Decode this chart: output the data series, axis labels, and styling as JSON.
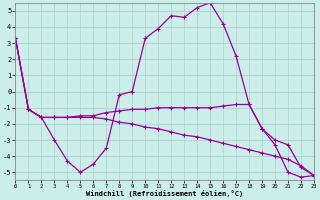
{
  "xlabel": "Windchill (Refroidissement éolien,°C)",
  "background_color": "#cceee8",
  "grid_color": "#aacccc",
  "line_color": "#990099",
  "xlim": [
    0,
    23
  ],
  "ylim": [
    -5.5,
    5.5
  ],
  "yticks": [
    -5,
    -4,
    -3,
    -2,
    -1,
    0,
    1,
    2,
    3,
    4,
    5
  ],
  "xticks": [
    0,
    1,
    2,
    3,
    4,
    5,
    6,
    7,
    8,
    9,
    10,
    11,
    12,
    13,
    14,
    15,
    16,
    17,
    18,
    19,
    20,
    21,
    22,
    23
  ],
  "line1_x": [
    0,
    1,
    2,
    3,
    4,
    5,
    6,
    7,
    8,
    9,
    10,
    11,
    12,
    13,
    14,
    15,
    16,
    17,
    18,
    19,
    20,
    21,
    22,
    23
  ],
  "line1_y": [
    3.3,
    -1.1,
    -1.6,
    -3.0,
    -4.3,
    -5.0,
    -4.5,
    -3.5,
    -0.2,
    0.0,
    3.3,
    3.9,
    4.7,
    4.6,
    5.2,
    5.5,
    4.2,
    2.2,
    -0.8,
    -2.3,
    -3.0,
    -3.3,
    -4.7,
    -5.2
  ],
  "line2_x": [
    0,
    1,
    2,
    3,
    4,
    5,
    6,
    7,
    8,
    9,
    10,
    11,
    12,
    13,
    14,
    15,
    16,
    17,
    18,
    19,
    20,
    21,
    22,
    23
  ],
  "line2_y": [
    3.3,
    -1.1,
    -1.6,
    -1.6,
    -1.6,
    -1.5,
    -1.5,
    -1.3,
    -1.2,
    -1.1,
    -1.1,
    -1.0,
    -1.0,
    -1.0,
    -1.0,
    -1.0,
    -0.9,
    -0.8,
    -0.8,
    -2.3,
    -3.3,
    -5.0,
    -5.3,
    -5.2
  ],
  "line3_x": [
    0,
    1,
    2,
    3,
    4,
    5,
    6,
    7,
    8,
    9,
    10,
    11,
    12,
    13,
    14,
    15,
    16,
    17,
    18,
    19,
    20,
    21,
    22,
    23
  ],
  "line3_y": [
    3.3,
    -1.1,
    -1.6,
    -1.6,
    -1.6,
    -1.6,
    -1.6,
    -1.7,
    -1.9,
    -2.0,
    -2.2,
    -2.3,
    -2.5,
    -2.7,
    -2.8,
    -3.0,
    -3.2,
    -3.4,
    -3.6,
    -3.8,
    -4.0,
    -4.2,
    -4.6,
    -5.2
  ]
}
